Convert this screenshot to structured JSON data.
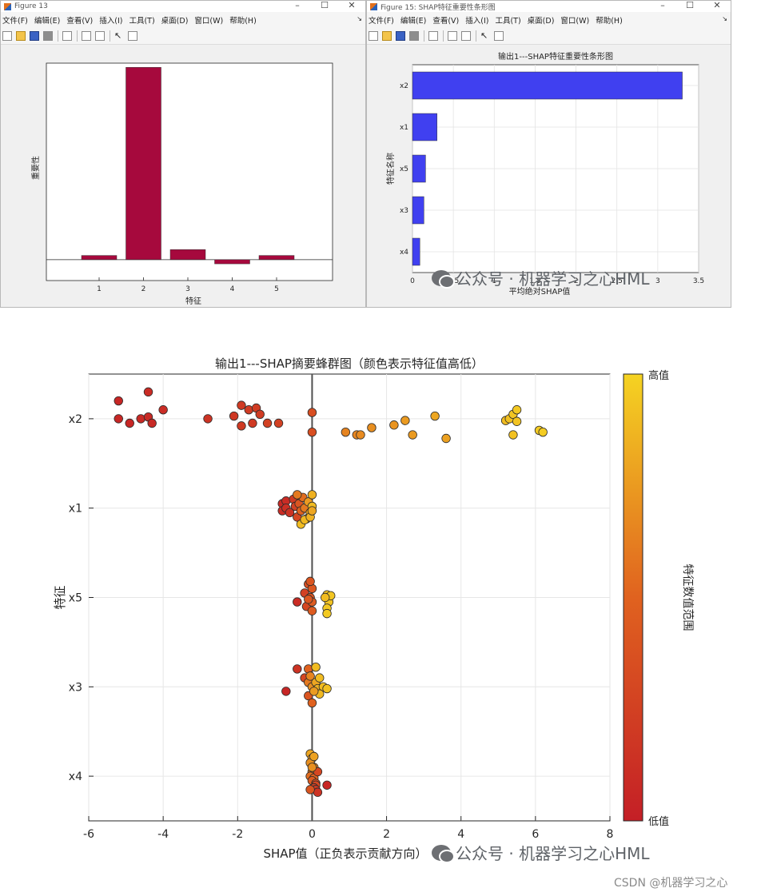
{
  "figure13": {
    "title": "Figure 13",
    "menu": [
      "文件(F)",
      "编辑(E)",
      "查看(V)",
      "插入(I)",
      "工具(T)",
      "桌面(D)",
      "窗口(W)",
      "帮助(H)"
    ],
    "chart_data": {
      "type": "bar",
      "categories": [
        "1",
        "2",
        "3",
        "4",
        "5"
      ],
      "values": [
        0.05,
        2.3,
        0.12,
        -0.05,
        0.05
      ],
      "title": "",
      "xlabel": "特征",
      "ylabel": "重要性",
      "ylim": [
        -0.25,
        2.35
      ],
      "bar_color": "#a6093d",
      "grid": false
    }
  },
  "figure15": {
    "title": "Figure 15: SHAP特征重要性条形图",
    "menu": [
      "文件(F)",
      "编辑(E)",
      "查看(V)",
      "插入(I)",
      "工具(T)",
      "桌面(D)",
      "窗口(W)",
      "帮助(H)"
    ],
    "chart_data": {
      "type": "bar",
      "orientation": "horizontal",
      "title": "输出1---SHAP特征重要性条形图",
      "xlabel": "平均绝对SHAP值",
      "ylabel": "特征名称",
      "categories": [
        "x2",
        "x1",
        "x5",
        "x3",
        "x4"
      ],
      "values": [
        3.3,
        0.3,
        0.16,
        0.14,
        0.09
      ],
      "xlim": [
        0,
        3.5
      ],
      "xticks": [
        "0",
        "0.5",
        "1",
        "1.5",
        "2",
        "2.5",
        "3",
        "3.5"
      ],
      "bar_color": "#4040f0",
      "grid": true
    }
  },
  "beeswarm": {
    "chart_data": {
      "type": "scatter",
      "title": "输出1---SHAP摘要蜂群图（颜色表示特征值高低）",
      "xlabel": "SHAP值（正负表示贡献方向）",
      "ylabel": "特征",
      "xlim": [
        -6,
        8
      ],
      "xticks": [
        "-6",
        "-4",
        "-2",
        "0",
        "2",
        "4",
        "6",
        "8"
      ],
      "categories": [
        "x2",
        "x1",
        "x5",
        "x3",
        "x4"
      ],
      "grid": true,
      "colorbar": {
        "label": "特征数值范围",
        "high": "高值",
        "low": "低值",
        "high_color": "#f5d322",
        "low_color": "#c41f26"
      },
      "series": [
        {
          "feature": "x2",
          "points": [
            [
              -5.2,
              0.2,
              0.05
            ],
            [
              -5.2,
              0.0,
              0.06
            ],
            [
              -4.9,
              -0.05,
              0.05
            ],
            [
              -4.6,
              0.0,
              0.08
            ],
            [
              -4.4,
              0.3,
              0.1
            ],
            [
              -4.4,
              0.02,
              0.08
            ],
            [
              -4.3,
              -0.05,
              0.08
            ],
            [
              -4.0,
              0.1,
              0.1
            ],
            [
              -2.8,
              0.0,
              0.15
            ],
            [
              -2.1,
              0.03,
              0.18
            ],
            [
              -1.9,
              0.15,
              0.2
            ],
            [
              -1.9,
              -0.08,
              0.2
            ],
            [
              -1.7,
              0.1,
              0.22
            ],
            [
              -1.6,
              -0.05,
              0.2
            ],
            [
              -1.5,
              0.12,
              0.22
            ],
            [
              -1.4,
              0.05,
              0.22
            ],
            [
              -1.2,
              -0.05,
              0.25
            ],
            [
              -0.9,
              -0.05,
              0.25
            ],
            [
              0.0,
              0.07,
              0.35
            ],
            [
              0.0,
              -0.15,
              0.35
            ],
            [
              0.9,
              -0.15,
              0.65
            ],
            [
              1.2,
              -0.18,
              0.66
            ],
            [
              1.3,
              -0.18,
              0.68
            ],
            [
              1.6,
              -0.1,
              0.7
            ],
            [
              2.2,
              -0.07,
              0.72
            ],
            [
              2.5,
              -0.02,
              0.75
            ],
            [
              2.7,
              -0.18,
              0.75
            ],
            [
              3.3,
              0.03,
              0.8
            ],
            [
              3.6,
              -0.22,
              0.78
            ],
            [
              5.2,
              -0.02,
              0.9
            ],
            [
              5.3,
              0.0,
              0.92
            ],
            [
              5.4,
              0.05,
              0.94
            ],
            [
              5.5,
              0.1,
              0.95
            ],
            [
              5.5,
              -0.03,
              0.93
            ],
            [
              5.4,
              -0.18,
              0.92
            ],
            [
              6.1,
              -0.13,
              0.96
            ],
            [
              6.2,
              -0.15,
              0.97
            ]
          ]
        },
        {
          "feature": "x1",
          "points": [
            [
              -0.8,
              0.05,
              0.08
            ],
            [
              -0.8,
              -0.03,
              0.1
            ],
            [
              -0.7,
              0.08,
              0.1
            ],
            [
              -0.7,
              0.0,
              0.12
            ],
            [
              -0.6,
              -0.05,
              0.15
            ],
            [
              -0.5,
              0.1,
              0.2
            ],
            [
              -0.45,
              0.02,
              0.25
            ],
            [
              -0.4,
              -0.1,
              0.3
            ],
            [
              -0.35,
              0.05,
              0.4
            ],
            [
              -0.3,
              -0.03,
              0.5
            ],
            [
              -0.25,
              0.12,
              0.55
            ],
            [
              -0.2,
              0.0,
              0.6
            ],
            [
              -0.15,
              -0.12,
              0.7
            ],
            [
              -0.1,
              0.07,
              0.75
            ],
            [
              -0.05,
              -0.05,
              0.8
            ],
            [
              0.0,
              0.15,
              0.85
            ],
            [
              0.0,
              0.02,
              0.9
            ],
            [
              -0.3,
              -0.18,
              0.9
            ],
            [
              -0.2,
              -0.13,
              0.88
            ],
            [
              -0.05,
              -0.1,
              0.85
            ],
            [
              -0.4,
              0.15,
              0.6
            ],
            [
              0.0,
              -0.03,
              0.8
            ]
          ]
        },
        {
          "feature": "x5",
          "points": [
            [
              -0.4,
              -0.05,
              0.1
            ],
            [
              -0.2,
              0.05,
              0.25
            ],
            [
              -0.15,
              -0.1,
              0.3
            ],
            [
              -0.1,
              0.15,
              0.35
            ],
            [
              -0.05,
              0.0,
              0.4
            ],
            [
              0.0,
              0.1,
              0.42
            ],
            [
              0.0,
              -0.05,
              0.45
            ],
            [
              -0.05,
              0.18,
              0.4
            ],
            [
              0.0,
              -0.15,
              0.45
            ],
            [
              -0.1,
              -0.02,
              0.42
            ],
            [
              0.4,
              0.03,
              0.92
            ],
            [
              0.45,
              -0.05,
              0.93
            ],
            [
              0.5,
              0.02,
              0.94
            ],
            [
              0.4,
              -0.12,
              0.95
            ],
            [
              0.4,
              -0.18,
              0.96
            ],
            [
              0.35,
              0.0,
              0.9
            ]
          ]
        },
        {
          "feature": "x3",
          "points": [
            [
              -0.7,
              -0.05,
              0.05
            ],
            [
              -0.4,
              0.2,
              0.15
            ],
            [
              -0.1,
              0.2,
              0.5
            ],
            [
              0.1,
              0.22,
              0.9
            ],
            [
              -0.2,
              0.1,
              0.3
            ],
            [
              -0.1,
              0.05,
              0.6
            ],
            [
              0.0,
              0.0,
              0.7
            ],
            [
              0.1,
              0.05,
              0.8
            ],
            [
              0.15,
              -0.02,
              0.85
            ],
            [
              0.3,
              0.0,
              0.9
            ],
            [
              0.4,
              -0.02,
              0.92
            ],
            [
              0.2,
              -0.08,
              0.88
            ],
            [
              -0.1,
              -0.1,
              0.4
            ],
            [
              0.0,
              -0.18,
              0.5
            ],
            [
              -0.05,
              0.12,
              0.65
            ],
            [
              0.05,
              -0.05,
              0.75
            ],
            [
              0.2,
              0.1,
              0.9
            ]
          ]
        },
        {
          "feature": "x4",
          "points": [
            [
              -0.05,
              0.25,
              0.8
            ],
            [
              0.0,
              0.2,
              0.75
            ],
            [
              -0.05,
              0.15,
              0.7
            ],
            [
              0.05,
              0.1,
              0.65
            ],
            [
              0.0,
              0.05,
              0.6
            ],
            [
              -0.05,
              0.0,
              0.55
            ],
            [
              0.05,
              -0.02,
              0.5
            ],
            [
              0.0,
              -0.05,
              0.45
            ],
            [
              0.1,
              -0.08,
              0.35
            ],
            [
              0.1,
              -0.1,
              0.3
            ],
            [
              0.05,
              -0.13,
              0.25
            ],
            [
              0.1,
              -0.15,
              0.2
            ],
            [
              0.15,
              -0.18,
              0.15
            ],
            [
              0.4,
              -0.1,
              0.05
            ],
            [
              0.15,
              0.05,
              0.3
            ],
            [
              -0.05,
              -0.15,
              0.4
            ],
            [
              0.0,
              0.1,
              0.7
            ],
            [
              0.05,
              0.22,
              0.78
            ]
          ]
        }
      ]
    }
  },
  "watermarks": {
    "wechat": "公众号 · 机器学习之心HML",
    "csdn_corner": "CSDN @机器学习之心"
  }
}
